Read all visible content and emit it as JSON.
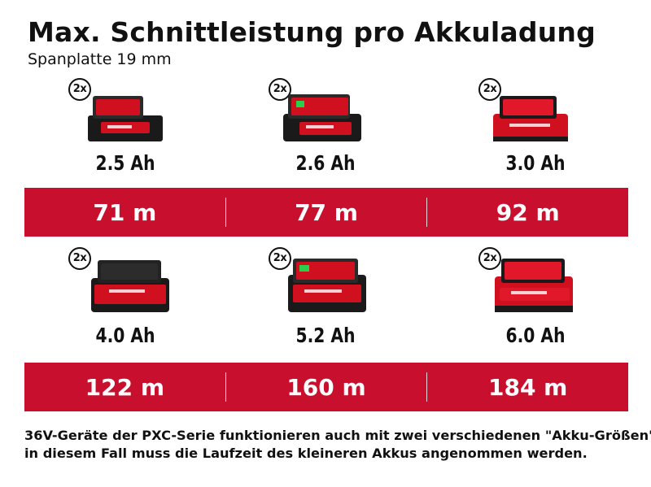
{
  "title": "Max. Schnittleistung pro Akkuladung",
  "subtitle": "Spanplatte 19 mm",
  "badge_label": "2x",
  "rows": [
    {
      "cells": [
        {
          "capacity": "2.5 Ah",
          "result": "71 m"
        },
        {
          "capacity": "2.6 Ah",
          "result": "77 m"
        },
        {
          "capacity": "3.0 Ah",
          "result": "92 m"
        }
      ]
    },
    {
      "cells": [
        {
          "capacity": "4.0 Ah",
          "result": "122 m"
        },
        {
          "capacity": "5.2 Ah",
          "result": "160 m"
        },
        {
          "capacity": "6.0 Ah",
          "result": "184 m"
        }
      ]
    }
  ],
  "note": {
    "line1": "36V-Geräte der PXC-Serie funktionieren auch mit zwei verschiedenen \"Akku-Größen\";",
    "line2": "in diesem Fall muss die Laufzeit des kleineren Akkus angenommen werden."
  },
  "colors": {
    "band": "#c8102e",
    "battery_red": "#d0101e",
    "battery_dark": "#1a1a1a"
  },
  "icons": [
    "battery-pack-icon"
  ]
}
